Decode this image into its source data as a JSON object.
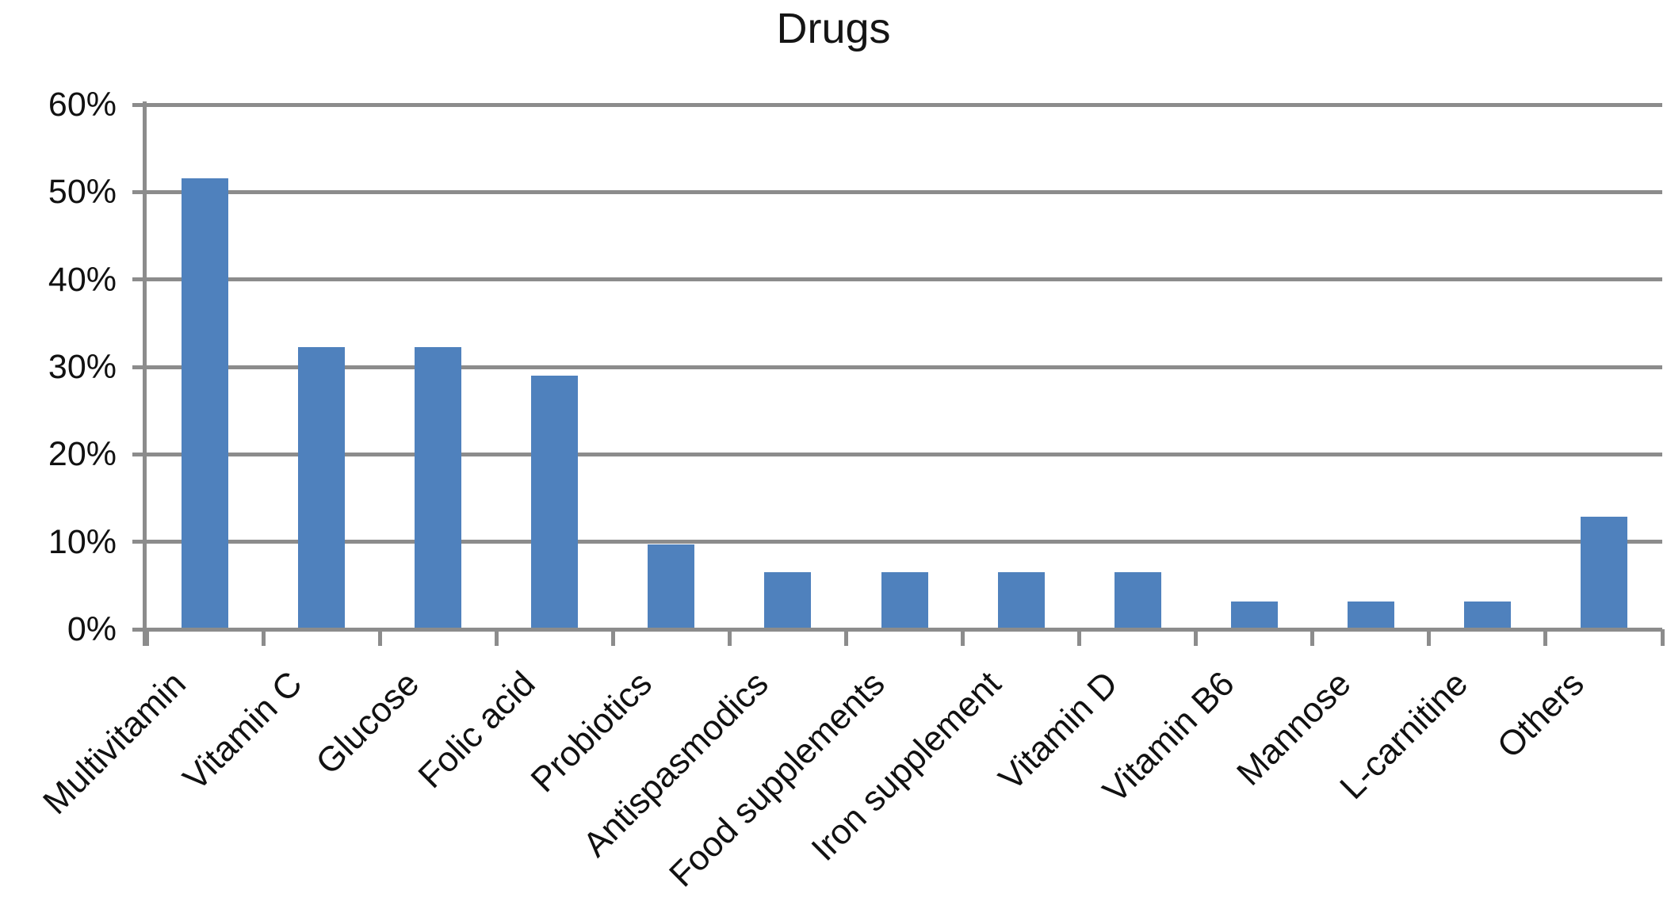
{
  "chart_data": {
    "type": "bar",
    "title": "Drugs",
    "categories": [
      "Multivitamin",
      "Vitamin C",
      "Glucose",
      "Folic acid",
      "Probiotics",
      "Antispasmodics",
      "Food supplements",
      "Iron supplement",
      "Vitamin D",
      "Vitamin B6",
      "Mannose",
      "L-carnitine",
      "Others"
    ],
    "values": [
      51.6,
      32.3,
      32.3,
      29.0,
      9.7,
      6.5,
      6.5,
      6.5,
      6.5,
      3.2,
      3.2,
      3.2,
      12.9
    ],
    "y_ticks": [
      0,
      10,
      20,
      30,
      40,
      50,
      60
    ],
    "y_tick_labels": [
      "0%",
      "10%",
      "20%",
      "30%",
      "40%",
      "50%",
      "60%"
    ],
    "ylim": [
      0,
      60
    ],
    "xlabel": "",
    "ylabel": "",
    "grid": true,
    "legend": false,
    "x_label_rotation_deg": 45,
    "bar_color": "#4F81BD",
    "grid_color": "#8C8C8C",
    "axis_color": "#8C8C8C",
    "text_color": "#111111",
    "background_color": "#FFFFFF"
  }
}
